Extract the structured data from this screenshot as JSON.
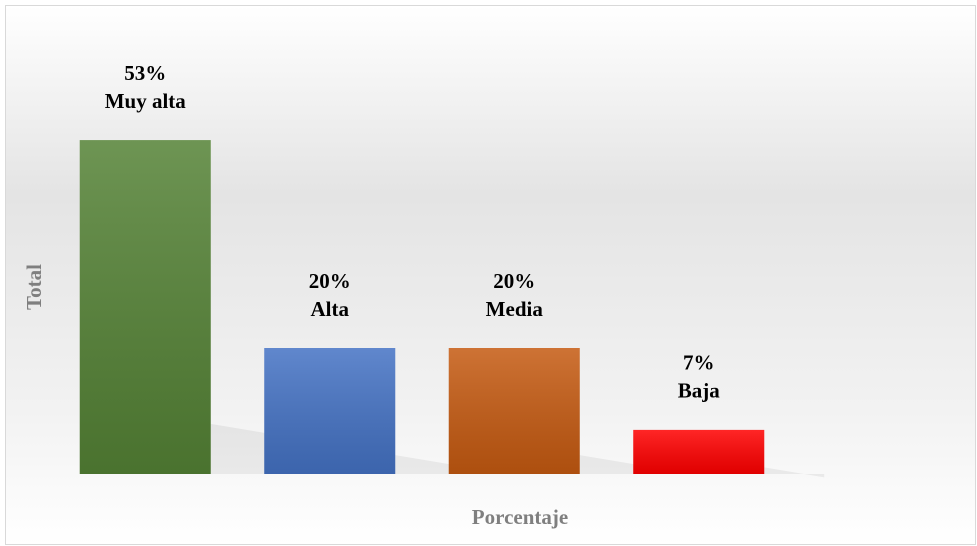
{
  "chart_data": {
    "type": "bar",
    "categories": [
      "Muy alta",
      "Alta",
      "Media",
      "Baja"
    ],
    "values": [
      53,
      20,
      20,
      7
    ],
    "value_labels": [
      "53%",
      "20%",
      "20%",
      "7%"
    ],
    "colors": [
      "#548235",
      "#4472c4",
      "#c55a11",
      "#ff0000"
    ],
    "xlabel": "Porcentaje",
    "ylabel": "Total",
    "ylim": [
      0,
      60
    ]
  }
}
